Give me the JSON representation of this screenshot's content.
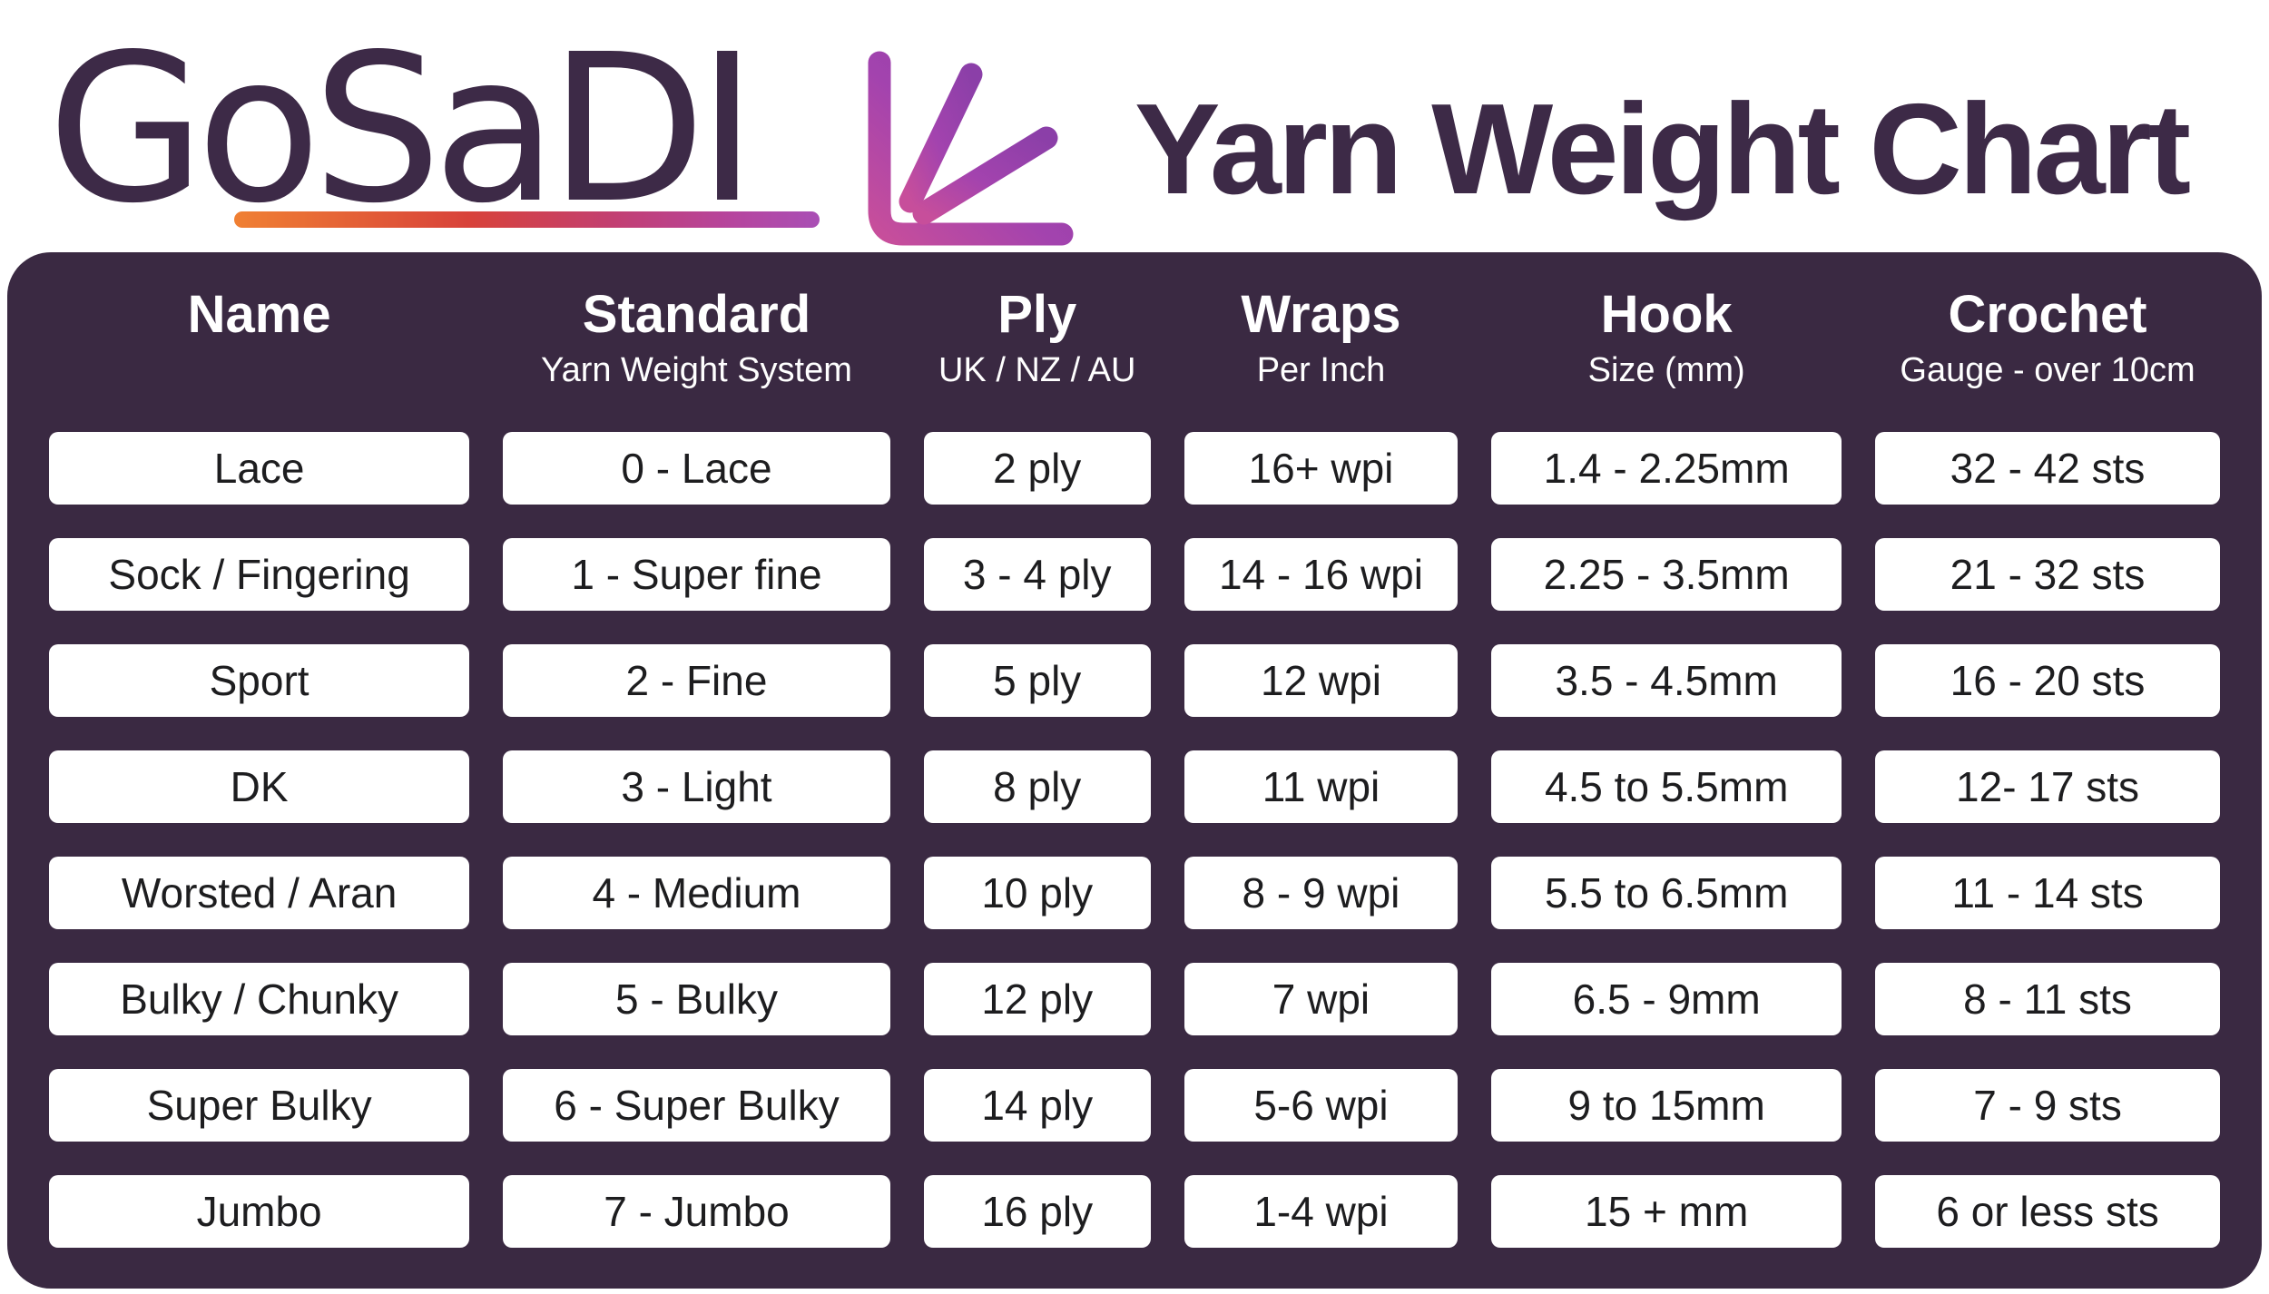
{
  "brand": {
    "logo_text": "GoSaDI",
    "logo_color": "#3d2a47",
    "underline_gradient": [
      "#f08033",
      "#d8423a",
      "#b6459e",
      "#a94fb5"
    ],
    "arrow_icon": "down-left-rays-arrow",
    "arrow_gradient": [
      "#8b3fa8",
      "#c74e9b"
    ]
  },
  "header": {
    "title": "Yarn Weight Chart"
  },
  "table": {
    "panel_color": "#3a2942",
    "cell_color": "#ffffff",
    "header_text_color": "#ffffff",
    "cell_text_color": "#1d1d1f",
    "columns": [
      {
        "label": "Name",
        "sublabel": ""
      },
      {
        "label": "Standard",
        "sublabel": "Yarn Weight System"
      },
      {
        "label": "Ply",
        "sublabel": "UK / NZ / AU"
      },
      {
        "label": "Wraps",
        "sublabel": "Per Inch"
      },
      {
        "label": "Hook",
        "sublabel": "Size (mm)"
      },
      {
        "label": "Crochet",
        "sublabel": "Gauge - over 10cm"
      }
    ],
    "rows": [
      [
        "Lace",
        "0 - Lace",
        "2 ply",
        "16+ wpi",
        "1.4 - 2.25mm",
        "32 - 42 sts"
      ],
      [
        "Sock / Fingering",
        "1 - Super fine",
        "3 - 4 ply",
        "14 - 16 wpi",
        "2.25 - 3.5mm",
        "21 - 32 sts"
      ],
      [
        "Sport",
        "2 - Fine",
        "5 ply",
        "12 wpi",
        "3.5 - 4.5mm",
        "16 - 20 sts"
      ],
      [
        "DK",
        "3 - Light",
        "8 ply",
        "11 wpi",
        "4.5 to 5.5mm",
        "12- 17 sts"
      ],
      [
        "Worsted / Aran",
        "4 - Medium",
        "10 ply",
        "8 - 9 wpi",
        "5.5 to 6.5mm",
        "11 - 14 sts"
      ],
      [
        "Bulky / Chunky",
        "5 - Bulky",
        "12 ply",
        "7 wpi",
        "6.5 - 9mm",
        "8 - 11 sts"
      ],
      [
        "Super Bulky",
        "6 - Super Bulky",
        "14 ply",
        "5-6 wpi",
        "9 to 15mm",
        "7 - 9 sts"
      ],
      [
        "Jumbo",
        "7 - Jumbo",
        "16 ply",
        "1-4 wpi",
        "15 + mm",
        "6 or less sts"
      ]
    ]
  },
  "chart_data": {
    "type": "table",
    "title": "Yarn Weight Chart",
    "columns": [
      "Name",
      "Standard (Yarn Weight System)",
      "Ply (UK / NZ / AU)",
      "Wraps Per Inch",
      "Hook Size (mm)",
      "Crochet Gauge - over 10cm"
    ],
    "rows": [
      [
        "Lace",
        "0 - Lace",
        "2 ply",
        "16+ wpi",
        "1.4 - 2.25mm",
        "32 - 42 sts"
      ],
      [
        "Sock / Fingering",
        "1 - Super fine",
        "3 - 4 ply",
        "14 - 16 wpi",
        "2.25 - 3.5mm",
        "21 - 32 sts"
      ],
      [
        "Sport",
        "2 - Fine",
        "5 ply",
        "12 wpi",
        "3.5 - 4.5mm",
        "16 - 20 sts"
      ],
      [
        "DK",
        "3 - Light",
        "8 ply",
        "11 wpi",
        "4.5 to 5.5mm",
        "12- 17 sts"
      ],
      [
        "Worsted / Aran",
        "4 - Medium",
        "10 ply",
        "8 - 9 wpi",
        "5.5 to 6.5mm",
        "11 - 14 sts"
      ],
      [
        "Bulky / Chunky",
        "5 - Bulky",
        "12 ply",
        "7 wpi",
        "6.5 - 9mm",
        "8 - 11 sts"
      ],
      [
        "Super Bulky",
        "6 - Super Bulky",
        "14 ply",
        "5-6 wpi",
        "9 to 15mm",
        "7 - 9 sts"
      ],
      [
        "Jumbo",
        "7 - Jumbo",
        "16 ply",
        "1-4 wpi",
        "15 + mm",
        "6 or less sts"
      ]
    ]
  }
}
